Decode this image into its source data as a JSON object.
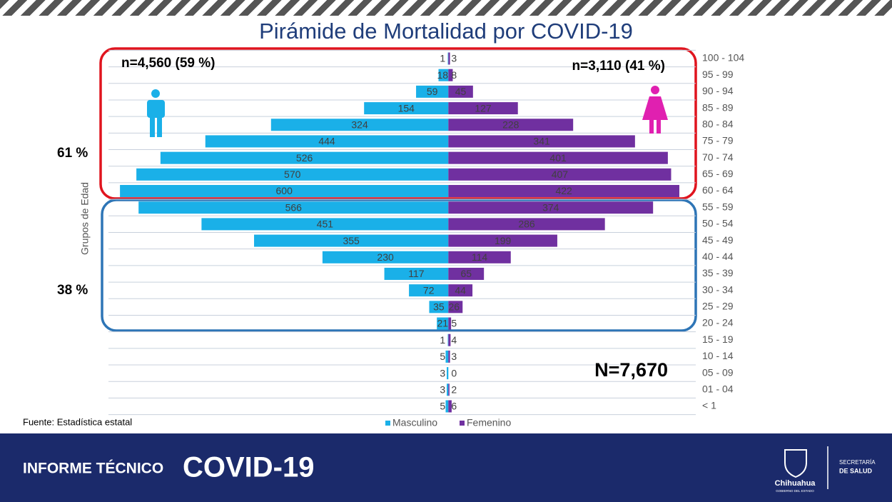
{
  "chart_data": {
    "type": "pyramid",
    "title": "Pirámide de Mortalidad por COVID-19",
    "y_label": "Grupos de Edad",
    "categories": [
      "100 - 104",
      "95 - 99",
      "90 - 94",
      "85 - 89",
      "80 - 84",
      "75 - 79",
      "70 - 74",
      "65 - 69",
      "60 - 64",
      "55 - 59",
      "50 - 54",
      "45 - 49",
      "40 - 44",
      "35 - 39",
      "30 - 34",
      "25 - 29",
      "20 - 24",
      "15 - 19",
      "10 - 14",
      "05 - 09",
      "01 - 04",
      "< 1"
    ],
    "series": [
      {
        "name": "Masculino",
        "color": "#1ab0e8",
        "values": [
          1,
          18,
          59,
          154,
          324,
          444,
          526,
          570,
          600,
          566,
          451,
          355,
          230,
          117,
          72,
          35,
          21,
          1,
          5,
          3,
          3,
          5
        ]
      },
      {
        "name": "Femenino",
        "color": "#7030a0",
        "values": [
          3,
          8,
          45,
          127,
          228,
          341,
          401,
          407,
          422,
          374,
          286,
          199,
          114,
          65,
          44,
          26,
          5,
          4,
          3,
          0,
          2,
          6
        ]
      }
    ],
    "xlim": [
      -621,
      452
    ],
    "annotations": {
      "male_total": "n=4,560 (59 %)",
      "female_total": "n=3,110 (41 %)",
      "upper_share": "61 %",
      "lower_share": "38 %",
      "grand_total": "N=7,670"
    },
    "source": "Fuente: Estadística estatal"
  },
  "footer": {
    "report": "INFORME TÉCNICO",
    "topic": "COVID-19",
    "state": "Chihuahua",
    "state_sub": "GOBIERNO DEL ESTADO",
    "ministry_1": "SECRETARÍA",
    "ministry_2": "DE SALUD"
  }
}
